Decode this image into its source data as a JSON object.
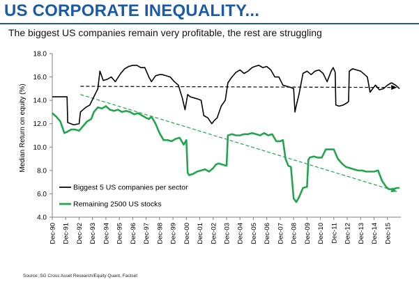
{
  "header": {
    "title": "US CORPORATE INEQUALITY...",
    "subtitle": "The biggest US companies remain very profitable, the rest are struggling"
  },
  "footer": {
    "source": "Source: SG Cross Asset Research/Equity Quant, Factset"
  },
  "colors": {
    "title": "#1c5aa6",
    "big5": "#000000",
    "rest": "#21a64e",
    "axis": "#7f7f7f"
  },
  "chart_data": {
    "type": "line",
    "title": "",
    "xlabel": "",
    "ylabel": "Median Return on equity (%)",
    "ylim": [
      4.0,
      18.0
    ],
    "yticks": [
      "4.0",
      "6.0",
      "8.0",
      "10.0",
      "12.0",
      "14.0",
      "16.0",
      "18.0"
    ],
    "xlim": [
      1990.9,
      2016.9
    ],
    "xticks": [
      "Dec-90",
      "Dec-91",
      "Dec-92",
      "Dec-93",
      "Dec-94",
      "Dec-95",
      "Dec-96",
      "Dec-97",
      "Dec-98",
      "Dec-99",
      "Dec-00",
      "Dec-01",
      "Dec-02",
      "Dec-03",
      "Dec-04",
      "Dec-05",
      "Dec-06",
      "Dec-07",
      "Dec-08",
      "Dec-09",
      "Dec-10",
      "Dec-11",
      "Dec-12",
      "Dec-13",
      "Dec-14",
      "Dec-15"
    ],
    "legend_position": "bottom-left",
    "grid": false,
    "series": [
      {
        "name": "Biggest 5 US companies per sector",
        "style": "solid",
        "x": [
          1990.9,
          1991.5,
          1992.0,
          1992.05,
          1992.5,
          1992.9,
          1993.0,
          1993.4,
          1993.7,
          1994.0,
          1994.3,
          1994.45,
          1994.7,
          1995.0,
          1995.3,
          1995.6,
          1996.0,
          1996.3,
          1996.6,
          1996.9,
          1997.2,
          1997.5,
          1997.8,
          1998.1,
          1998.3,
          1998.6,
          1998.9,
          1999.1,
          1999.4,
          1999.7,
          2000.0,
          2000.3,
          2000.6,
          2000.8,
          2001.0,
          2001.2,
          2001.5,
          2001.8,
          2002.0,
          2002.2,
          2002.5,
          2002.8,
          2003.0,
          2003.2,
          2003.5,
          2003.8,
          2004.0,
          2004.3,
          2004.6,
          2004.9,
          2005.2,
          2005.5,
          2005.8,
          2006.0,
          2006.3,
          2006.6,
          2006.9,
          2007.2,
          2007.5,
          2007.8,
          2008.1,
          2008.4,
          2008.7,
          2008.9,
          2009.0,
          2009.05,
          2009.3,
          2009.6,
          2009.9,
          2010.2,
          2010.5,
          2010.8,
          2011.1,
          2011.4,
          2011.7,
          2011.85,
          2012.0,
          2012.05,
          2012.3,
          2012.6,
          2012.9,
          2013.0,
          2013.05,
          2013.3,
          2013.6,
          2013.9,
          2014.2,
          2014.4,
          2014.6,
          2014.8,
          2015.0,
          2015.3,
          2015.6,
          2015.9,
          2016.2,
          2016.5,
          2016.8
        ],
        "y": [
          14.3,
          14.3,
          14.3,
          12.1,
          11.9,
          12.0,
          13.0,
          13.4,
          13.6,
          14.3,
          15.0,
          16.5,
          15.7,
          15.8,
          16.0,
          15.6,
          16.3,
          16.7,
          16.9,
          17.0,
          17.0,
          16.8,
          16.8,
          16.0,
          15.6,
          16.1,
          16.2,
          16.2,
          16.1,
          16.0,
          15.6,
          15.3,
          14.2,
          13.2,
          14.5,
          14.3,
          14.2,
          14.1,
          14.0,
          12.7,
          12.5,
          12.0,
          12.3,
          12.5,
          13.5,
          14.0,
          15.5,
          16.0,
          16.4,
          16.6,
          16.3,
          16.5,
          16.8,
          16.9,
          17.0,
          16.8,
          16.9,
          16.6,
          16.0,
          16.0,
          15.3,
          15.2,
          15.1,
          15.0,
          13.0,
          13.3,
          14.5,
          16.3,
          16.5,
          16.2,
          16.5,
          16.6,
          16.3,
          15.6,
          16.5,
          16.8,
          16.4,
          13.6,
          13.5,
          13.6,
          13.8,
          13.9,
          16.5,
          16.7,
          16.6,
          16.5,
          16.2,
          16.0,
          14.7,
          15.0,
          15.3,
          14.9,
          15.0,
          15.3,
          15.5,
          15.3,
          15.0
        ]
      },
      {
        "name": "Remaining 2500 US stocks",
        "style": "solid",
        "x": [
          1990.9,
          1991.2,
          1991.5,
          1991.8,
          1992.0,
          1992.3,
          1992.6,
          1992.9,
          1993.2,
          1993.5,
          1993.8,
          1994.0,
          1994.3,
          1994.6,
          1994.9,
          1995.2,
          1995.5,
          1995.8,
          1996.1,
          1996.4,
          1996.7,
          1997.0,
          1997.3,
          1997.6,
          1997.9,
          1998.1,
          1998.3,
          1998.6,
          1998.9,
          1999.2,
          1999.5,
          1999.8,
          2000.1,
          2000.4,
          2000.7,
          2000.9,
          2001.0,
          2001.1,
          2001.4,
          2001.7,
          2002.0,
          2002.3,
          2002.6,
          2002.9,
          2003.1,
          2003.3,
          2003.6,
          2003.9,
          2004.0,
          2004.3,
          2004.6,
          2004.9,
          2005.2,
          2005.5,
          2005.8,
          2006.1,
          2006.4,
          2006.7,
          2007.0,
          2007.3,
          2007.6,
          2007.9,
          2008.1,
          2008.3,
          2008.5,
          2008.7,
          2008.9,
          2009.1,
          2009.3,
          2009.6,
          2009.9,
          2010.0,
          2010.1,
          2010.4,
          2010.7,
          2011.0,
          2011.3,
          2011.6,
          2011.9,
          2012.2,
          2012.5,
          2012.8,
          2013.1,
          2013.4,
          2013.7,
          2014.0,
          2014.3,
          2014.6,
          2014.9,
          2015.2,
          2015.5,
          2015.8,
          2016.0,
          2016.3,
          2016.6,
          2016.8
        ],
        "y": [
          12.9,
          12.6,
          12.2,
          11.2,
          11.3,
          11.5,
          11.5,
          11.4,
          11.8,
          12.2,
          12.4,
          13.0,
          13.4,
          13.3,
          13.5,
          13.2,
          13.1,
          13.2,
          13.0,
          13.1,
          13.0,
          12.8,
          12.9,
          12.7,
          12.5,
          12.4,
          12.6,
          12.0,
          11.2,
          10.6,
          10.6,
          10.5,
          10.7,
          10.8,
          10.2,
          10.6,
          7.8,
          7.6,
          7.7,
          7.9,
          8.0,
          8.1,
          7.9,
          8.2,
          8.5,
          8.6,
          8.5,
          8.4,
          11.0,
          11.1,
          11.0,
          11.0,
          11.1,
          11.1,
          11.2,
          11.1,
          11.0,
          11.2,
          11.0,
          11.1,
          10.5,
          10.5,
          10.6,
          9.0,
          8.4,
          8.3,
          5.6,
          5.3,
          5.7,
          6.5,
          6.6,
          8.9,
          9.1,
          9.2,
          9.1,
          9.1,
          9.8,
          9.8,
          9.8,
          9.0,
          8.6,
          8.3,
          8.2,
          8.1,
          8.0,
          8.0,
          7.9,
          7.9,
          7.9,
          8.0,
          7.1,
          6.6,
          6.4,
          6.4,
          6.5,
          6.5
        ]
      }
    ],
    "trendlines": [
      {
        "series": "Biggest 5 US companies per sector",
        "style": "dashed",
        "x": [
          1993.0,
          2016.6
        ],
        "y": [
          15.2,
          15.1
        ]
      },
      {
        "series": "Remaining 2500 US stocks",
        "style": "dashed",
        "x": [
          1993.0,
          2016.6
        ],
        "y": [
          14.5,
          6.2
        ]
      }
    ]
  }
}
